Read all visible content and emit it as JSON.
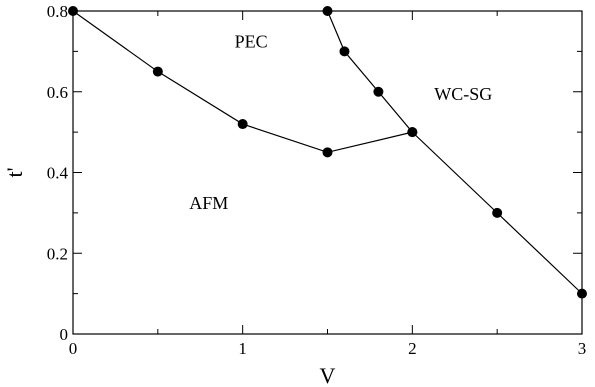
{
  "chart_data": {
    "type": "line",
    "xlabel": "V",
    "ylabel": "t'",
    "xlim": [
      0,
      3
    ],
    "ylim": [
      0,
      0.8
    ],
    "grid": false,
    "x_ticks": [
      0,
      1,
      2,
      3
    ],
    "x_tick_labels": [
      "0",
      "1",
      "2",
      "3"
    ],
    "y_ticks": [
      0,
      0.2,
      0.4,
      0.6,
      0.8
    ],
    "y_tick_labels": [
      "0",
      "0.2",
      "0.4",
      "0.6",
      "0.8"
    ],
    "series": [
      {
        "points": [
          {
            "x": 0,
            "y": 0.8
          },
          {
            "x": 0.5,
            "y": 0.65
          },
          {
            "x": 1.0,
            "y": 0.52
          },
          {
            "x": 1.5,
            "y": 0.45
          },
          {
            "x": 2.0,
            "y": 0.5
          }
        ]
      },
      {
        "points": [
          {
            "x": 1.5,
            "y": 0.8
          },
          {
            "x": 1.6,
            "y": 0.7
          },
          {
            "x": 1.8,
            "y": 0.6
          },
          {
            "x": 2.0,
            "y": 0.5
          },
          {
            "x": 2.5,
            "y": 0.3
          },
          {
            "x": 3.0,
            "y": 0.1
          }
        ]
      }
    ],
    "annotations": [
      {
        "text": "PEC",
        "x": 1.05,
        "y": 0.71
      },
      {
        "text": "WC-SG",
        "x": 2.3,
        "y": 0.58
      },
      {
        "text": "AFM",
        "x": 0.8,
        "y": 0.31
      }
    ]
  }
}
